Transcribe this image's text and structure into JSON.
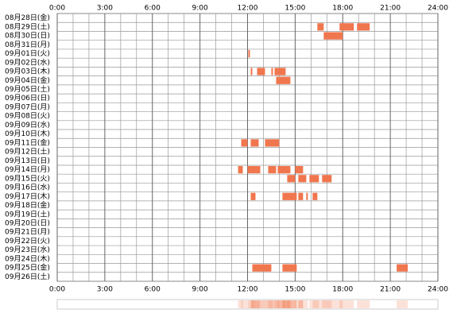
{
  "chart_data": {
    "type": "timeline",
    "categories": [
      "08月28日(金)",
      "08月29日(土)",
      "08月30日(日)",
      "08月31日(月)",
      "09月01日(火)",
      "09月02日(水)",
      "09月03日(木)",
      "09月04日(金)",
      "09月05日(土)",
      "09月06日(日)",
      "09月07日(月)",
      "09月08日(火)",
      "09月09日(水)",
      "09月10日(木)",
      "09月11日(金)",
      "09月12日(土)",
      "09月13日(日)",
      "09月14日(月)",
      "09月15日(火)",
      "09月16日(水)",
      "09月17日(木)",
      "09月18日(金)",
      "09月19日(土)",
      "09月20日(日)",
      "09月21日(月)",
      "09月22日(火)",
      "09月23日(水)",
      "09月24日(木)",
      "09月25日(金)",
      "09月26日(土)"
    ],
    "segments": [
      [],
      [
        [
          16.4,
          16.8
        ],
        [
          17.8,
          18.7
        ],
        [
          18.9,
          19.7
        ]
      ],
      [
        [
          16.8,
          18.0
        ]
      ],
      [],
      [
        [
          12.05,
          12.15
        ]
      ],
      [],
      [
        [
          12.2,
          12.3
        ],
        [
          12.6,
          13.1
        ],
        [
          13.5,
          13.6
        ],
        [
          13.7,
          14.4
        ]
      ],
      [
        [
          13.8,
          14.7
        ]
      ],
      [],
      [],
      [],
      [],
      [],
      [],
      [
        [
          11.6,
          12.0
        ],
        [
          12.2,
          12.7
        ],
        [
          13.1,
          14.0
        ]
      ],
      [],
      [],
      [
        [
          11.4,
          11.7
        ],
        [
          12.0,
          12.8
        ],
        [
          13.3,
          13.8
        ],
        [
          13.9,
          14.7
        ],
        [
          15.0,
          15.5
        ]
      ],
      [
        [
          14.5,
          15.0
        ],
        [
          15.2,
          15.7
        ],
        [
          15.9,
          16.5
        ],
        [
          16.7,
          17.3
        ]
      ],
      [],
      [
        [
          12.2,
          12.5
        ],
        [
          14.2,
          15.1
        ],
        [
          15.2,
          15.5
        ],
        [
          15.7,
          15.8
        ],
        [
          16.1,
          16.4
        ]
      ],
      [],
      [],
      [],
      [],
      [],
      [],
      [],
      [
        [
          12.3,
          13.5
        ],
        [
          14.2,
          15.1
        ],
        [
          21.4,
          22.1
        ]
      ],
      []
    ],
    "color": "#f0764e",
    "xlim": [
      0,
      24
    ],
    "xticks": [
      {
        "value": 0,
        "label": "0:00"
      },
      {
        "value": 3,
        "label": "3:00"
      },
      {
        "value": 6,
        "label": "6:00"
      },
      {
        "value": 9,
        "label": "9:00"
      },
      {
        "value": 12,
        "label": "12:00"
      },
      {
        "value": 15,
        "label": "15:00"
      },
      {
        "value": 18,
        "label": "18:00"
      },
      {
        "value": 21,
        "label": "21:00"
      },
      {
        "value": 24,
        "label": "24:00"
      }
    ],
    "minor_xticks": [
      1,
      2,
      4,
      5,
      7,
      8,
      10,
      11,
      13,
      14,
      16,
      17,
      19,
      20,
      22,
      23
    ]
  }
}
